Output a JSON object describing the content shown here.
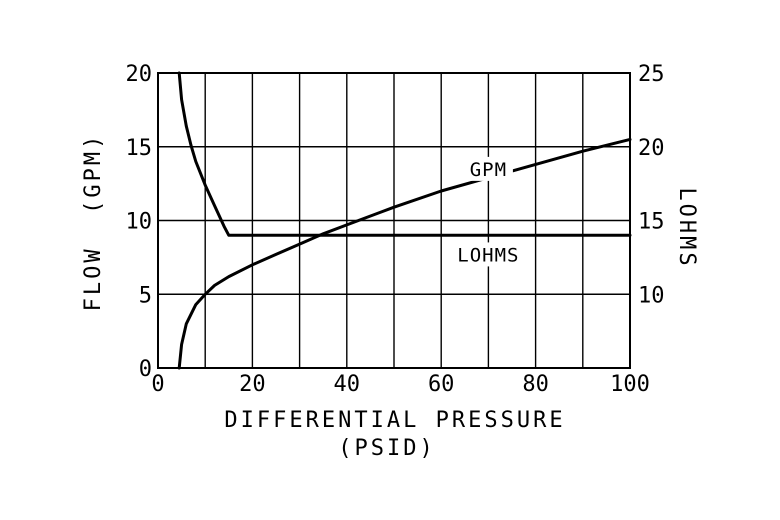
{
  "chart_data": {
    "type": "line",
    "xlabel": "DIFFERENTIAL PRESSURE",
    "xlabel_unit": "(PSID)",
    "ylabel": "FLOW  (GPM)",
    "y2label": "LOHMS",
    "xlim": [
      0,
      100
    ],
    "ylim": [
      0,
      20
    ],
    "y2lim": [
      5,
      25
    ],
    "grid": true,
    "x_ticks": [
      0,
      20,
      40,
      60,
      80,
      100
    ],
    "x_grid": [
      0,
      10,
      20,
      30,
      40,
      50,
      60,
      70,
      80,
      90,
      100
    ],
    "y_ticks": [
      0,
      5,
      10,
      15,
      20
    ],
    "y2_ticks": [
      10,
      15,
      20,
      25
    ],
    "series": [
      {
        "name": "GPM",
        "axis": "left",
        "x": [
          4.5,
          5,
          6,
          8,
          10,
          12,
          15,
          20,
          25,
          30,
          35,
          40,
          50,
          60,
          70,
          80,
          90,
          100
        ],
        "y": [
          0,
          1.6,
          3.0,
          4.3,
          5.0,
          5.6,
          6.2,
          7.0,
          7.7,
          8.4,
          9.1,
          9.7,
          10.9,
          12.0,
          12.9,
          13.8,
          14.7,
          15.5
        ]
      },
      {
        "name": "LOHMS",
        "axis": "right",
        "x": [
          4.5,
          5,
          6,
          7,
          8,
          10,
          12,
          14,
          15,
          20,
          40,
          60,
          80,
          100
        ],
        "y": [
          25,
          23.2,
          21.4,
          20.1,
          19.0,
          17.4,
          16.0,
          14.6,
          14.0,
          14.0,
          14.0,
          14.0,
          14.0,
          14.0
        ]
      }
    ],
    "annotations": [
      {
        "text": "GPM",
        "x": 70,
        "y": 13.5,
        "axis": "left"
      },
      {
        "text": "LOHMS",
        "x": 70,
        "y": 12.7,
        "axis": "right"
      }
    ]
  }
}
